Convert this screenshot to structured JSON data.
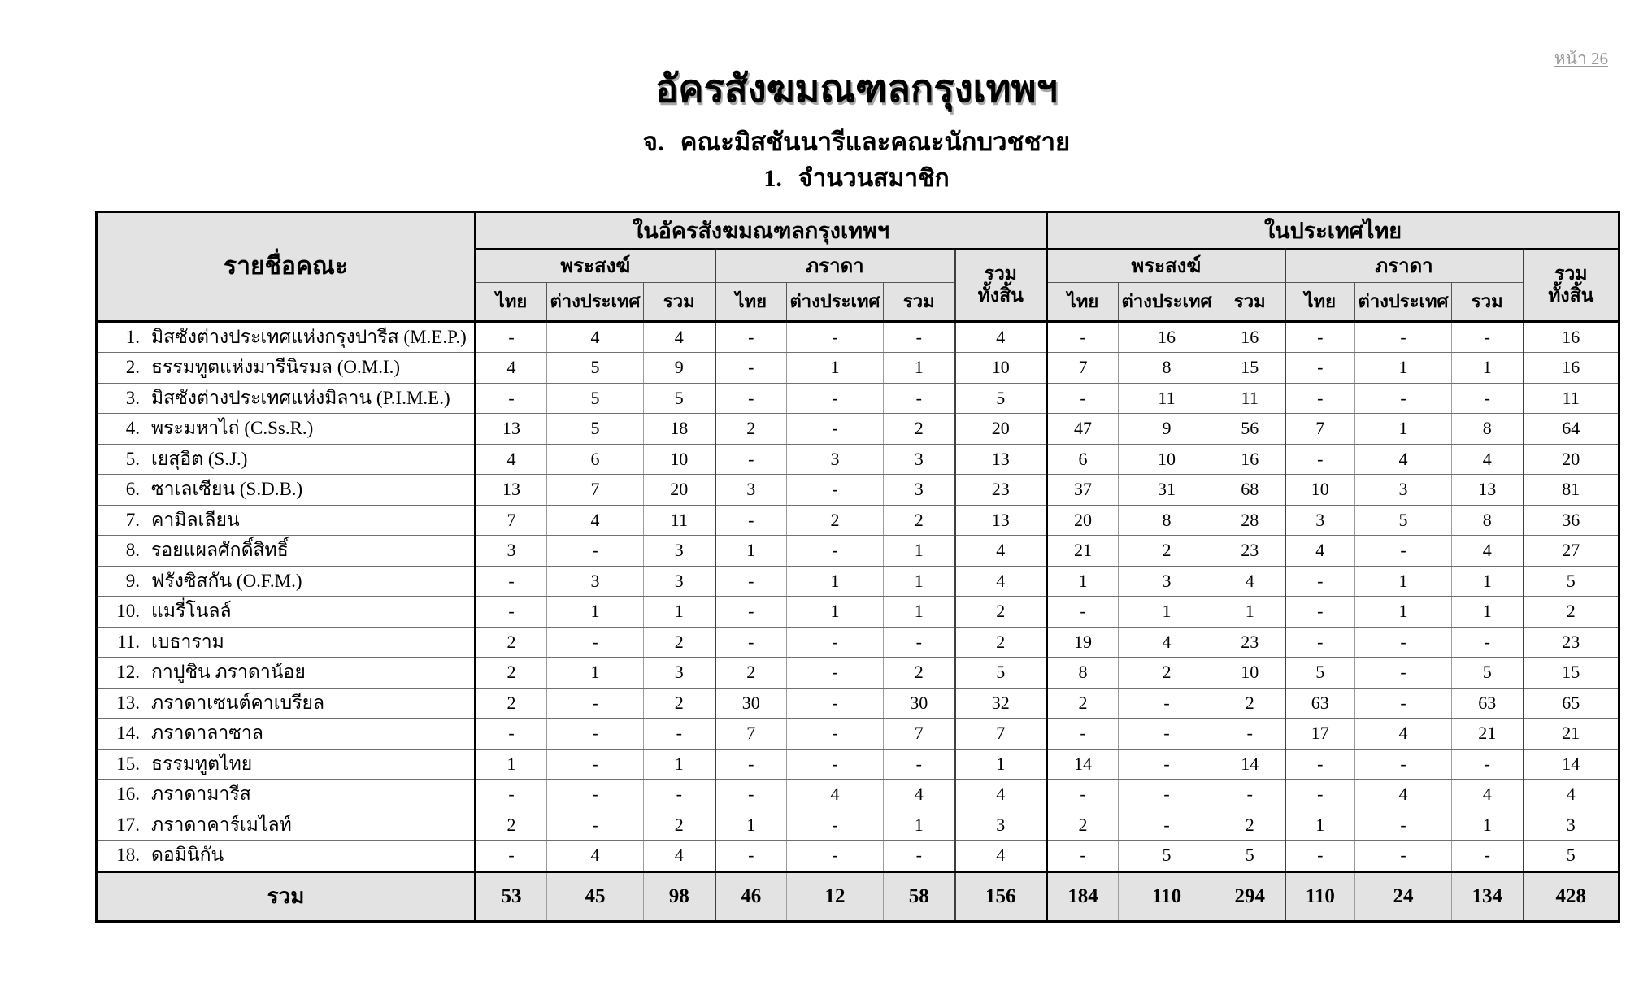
{
  "page": {
    "page_label": "หน้า 26"
  },
  "titles": {
    "main": "อัครสังฆมณฑลกรุงเทพฯ",
    "sub1_num": "จ.",
    "sub1_text": "คณะมิสชันนารีและคณะนักบวชชาย",
    "sub2_num": "1.",
    "sub2_text": "จำนวนสมาชิก"
  },
  "table": {
    "name_header": "รายชื่อคณะ",
    "groups": [
      {
        "label": "ในอัครสังฆมณฑลกรุงเทพฯ"
      },
      {
        "label": "ในประเทศไทย"
      }
    ],
    "subgroups": {
      "priests": "พระสงฆ์",
      "brothers": "ภราดา",
      "total_line1": "รวม",
      "total_line2": "ทั้งสิ้น"
    },
    "cols": {
      "thai": "ไทย",
      "foreign": "ต่างประเทศ",
      "total": "รวม"
    },
    "rows": [
      {
        "num": "1.",
        "name": "มิสซังต่างประเทศแห่งกรุงปารีส (M.E.P.)",
        "values": [
          "-",
          "4",
          "4",
          "-",
          "-",
          "-",
          "4",
          "-",
          "16",
          "16",
          "-",
          "-",
          "-",
          "16"
        ]
      },
      {
        "num": "2.",
        "name": "ธรรมทูตแห่งมารีนิรมล (O.M.I.)",
        "values": [
          "4",
          "5",
          "9",
          "-",
          "1",
          "1",
          "10",
          "7",
          "8",
          "15",
          "-",
          "1",
          "1",
          "16"
        ]
      },
      {
        "num": "3.",
        "name": "มิสซังต่างประเทศแห่งมิลาน (P.I.M.E.)",
        "values": [
          "-",
          "5",
          "5",
          "-",
          "-",
          "-",
          "5",
          "-",
          "11",
          "11",
          "-",
          "-",
          "-",
          "11"
        ]
      },
      {
        "num": "4.",
        "name": "พระมหาไถ่ (C.Ss.R.)",
        "values": [
          "13",
          "5",
          "18",
          "2",
          "-",
          "2",
          "20",
          "47",
          "9",
          "56",
          "7",
          "1",
          "8",
          "64"
        ]
      },
      {
        "num": "5.",
        "name": "เยสุอิต (S.J.)",
        "values": [
          "4",
          "6",
          "10",
          "-",
          "3",
          "3",
          "13",
          "6",
          "10",
          "16",
          "-",
          "4",
          "4",
          "20"
        ]
      },
      {
        "num": "6.",
        "name": "ซาเลเซียน (S.D.B.)",
        "values": [
          "13",
          "7",
          "20",
          "3",
          "-",
          "3",
          "23",
          "37",
          "31",
          "68",
          "10",
          "3",
          "13",
          "81"
        ]
      },
      {
        "num": "7.",
        "name": "คามิลเลียน",
        "values": [
          "7",
          "4",
          "11",
          "-",
          "2",
          "2",
          "13",
          "20",
          "8",
          "28",
          "3",
          "5",
          "8",
          "36"
        ]
      },
      {
        "num": "8.",
        "name": "รอยแผลศักดิ์สิทธิ์",
        "values": [
          "3",
          "-",
          "3",
          "1",
          "-",
          "1",
          "4",
          "21",
          "2",
          "23",
          "4",
          "-",
          "4",
          "27"
        ]
      },
      {
        "num": "9.",
        "name": "ฟรังซิสกัน (O.F.M.)",
        "values": [
          "-",
          "3",
          "3",
          "-",
          "1",
          "1",
          "4",
          "1",
          "3",
          "4",
          "-",
          "1",
          "1",
          "5"
        ]
      },
      {
        "num": "10.",
        "name": "แมรี่โนลล์",
        "values": [
          "-",
          "1",
          "1",
          "-",
          "1",
          "1",
          "2",
          "-",
          "1",
          "1",
          "-",
          "1",
          "1",
          "2"
        ]
      },
      {
        "num": "11.",
        "name": "เบธาราม",
        "values": [
          "2",
          "-",
          "2",
          "-",
          "-",
          "-",
          "2",
          "19",
          "4",
          "23",
          "-",
          "-",
          "-",
          "23"
        ]
      },
      {
        "num": "12.",
        "name": "กาปูชิน ภราดาน้อย",
        "values": [
          "2",
          "1",
          "3",
          "2",
          "-",
          "2",
          "5",
          "8",
          "2",
          "10",
          "5",
          "-",
          "5",
          "15"
        ]
      },
      {
        "num": "13.",
        "name": "ภราดาเซนต์คาเบรียล",
        "values": [
          "2",
          "-",
          "2",
          "30",
          "-",
          "30",
          "32",
          "2",
          "-",
          "2",
          "63",
          "-",
          "63",
          "65"
        ]
      },
      {
        "num": "14.",
        "name": "ภราดาลาซาล",
        "values": [
          "-",
          "-",
          "-",
          "7",
          "-",
          "7",
          "7",
          "-",
          "-",
          "-",
          "17",
          "4",
          "21",
          "21"
        ]
      },
      {
        "num": "15.",
        "name": "ธรรมทูตไทย",
        "values": [
          "1",
          "-",
          "1",
          "-",
          "-",
          "-",
          "1",
          "14",
          "-",
          "14",
          "-",
          "-",
          "-",
          "14"
        ]
      },
      {
        "num": "16.",
        "name": "ภราดามารีส",
        "values": [
          "-",
          "-",
          "-",
          "-",
          "4",
          "4",
          "4",
          "-",
          "-",
          "-",
          "-",
          "4",
          "4",
          "4"
        ]
      },
      {
        "num": "17.",
        "name": "ภราดาคาร์เมไลท์",
        "values": [
          "2",
          "-",
          "2",
          "1",
          "-",
          "1",
          "3",
          "2",
          "-",
          "2",
          "1",
          "-",
          "1",
          "3"
        ]
      },
      {
        "num": "18.",
        "name": "ดอมินิกัน",
        "values": [
          "-",
          "4",
          "4",
          "-",
          "-",
          "-",
          "4",
          "-",
          "5",
          "5",
          "-",
          "-",
          "-",
          "5"
        ]
      }
    ],
    "total_row": {
      "label": "รวม",
      "values": [
        "53",
        "45",
        "98",
        "46",
        "12",
        "58",
        "156",
        "184",
        "110",
        "294",
        "110",
        "24",
        "134",
        "428"
      ]
    }
  }
}
